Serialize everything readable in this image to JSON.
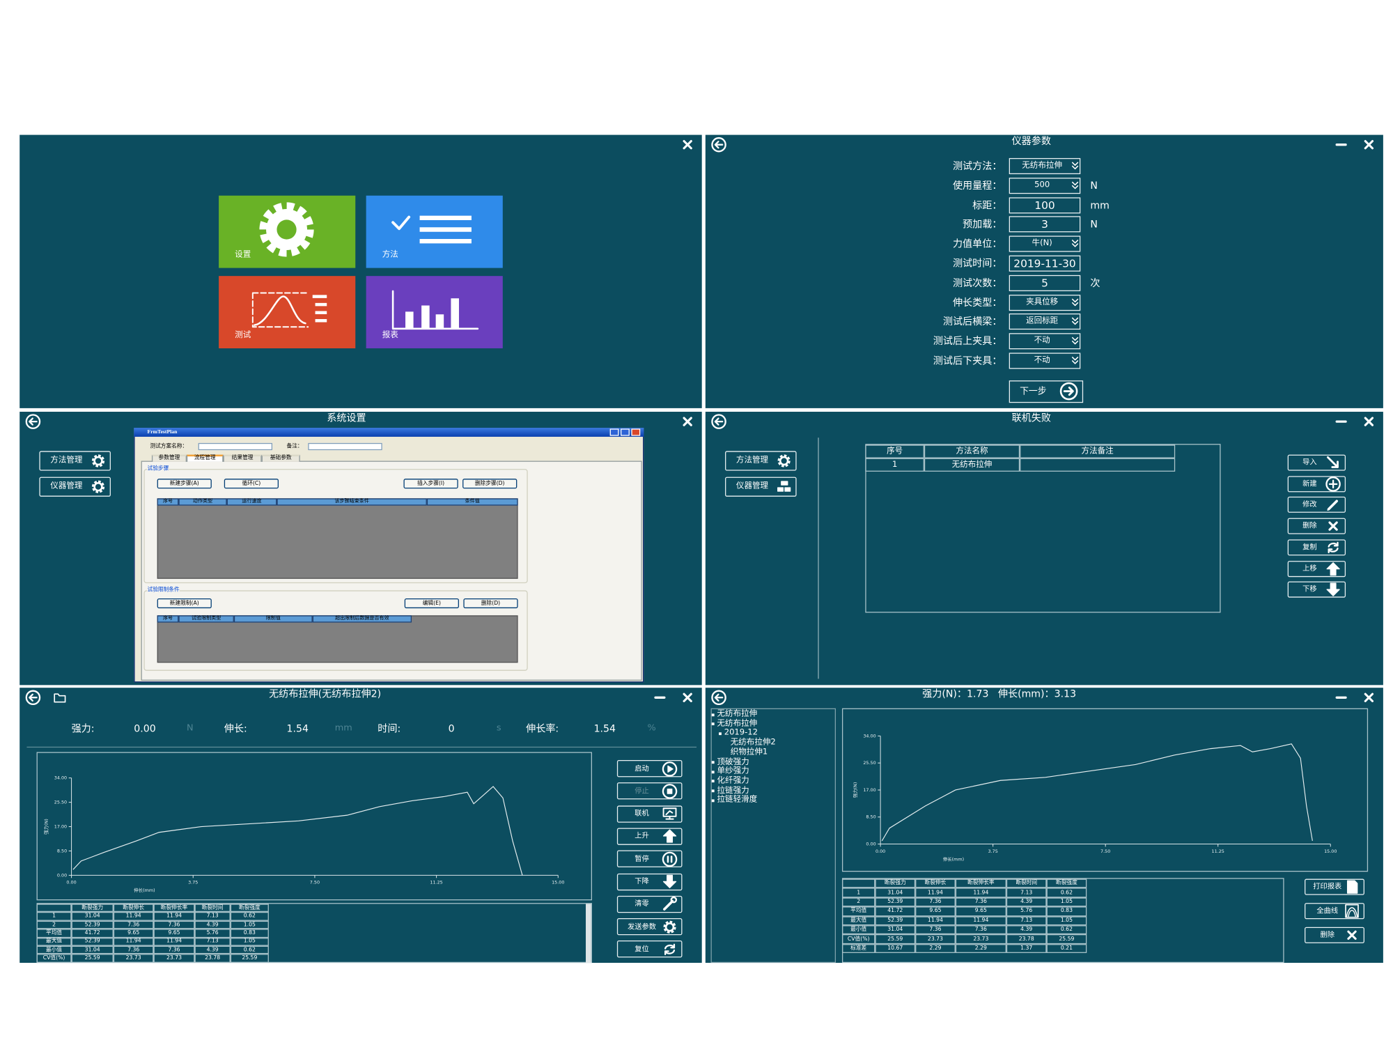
{
  "home": {
    "tiles": [
      "设置",
      "方法",
      "测试",
      "报表"
    ]
  },
  "instrument": {
    "title": "仪器参数",
    "fields": [
      {
        "label": "测试方法：",
        "value": "无纺布拉伸",
        "dropdown": true
      },
      {
        "label": "使用量程：",
        "value": "500",
        "unit": "N",
        "dropdown": true
      },
      {
        "label": "标距：",
        "value": "100",
        "unit": "mm"
      },
      {
        "label": "预加载：",
        "value": "3",
        "unit": "N"
      },
      {
        "label": "力值单位：",
        "value": "牛(N)",
        "dropdown": true
      },
      {
        "label": "测试时间：",
        "value": "2019-11-30"
      },
      {
        "label": "测试次数：",
        "value": "5",
        "unit": "次"
      },
      {
        "label": "伸长类型：",
        "value": "夹具位移",
        "dropdown": true
      },
      {
        "label": "测试后横梁：",
        "value": "返回标距",
        "dropdown": true
      },
      {
        "label": "测试后上夹具：",
        "value": "不动",
        "dropdown": true
      },
      {
        "label": "测试后下夹具：",
        "value": "不动",
        "dropdown": true
      }
    ],
    "next": "下一步"
  },
  "settings": {
    "title": "系统设置",
    "sidebar": [
      "方法管理",
      "仪器管理"
    ],
    "window": {
      "title": "FrmTestPlan",
      "name_label": "测试方案名称：",
      "remark_label": "备注：",
      "tabs": [
        "参数管理",
        "流程管理",
        "结果管理",
        "基础参数"
      ],
      "steps": {
        "title": "试验步骤",
        "buttons": [
          "新建步骤(A)",
          "循环(C)",
          "插入步骤(I)",
          "删除步骤(D)"
        ],
        "columns": [
          "序号",
          "动作类型",
          "运行速度",
          "该步骤结束条件",
          "条件值"
        ]
      },
      "limits": {
        "title": "试验限制条件",
        "buttons": [
          "新建限制(A)",
          "编辑(E)",
          "删除(D)"
        ],
        "columns": [
          "序号",
          "试验限制类型",
          "限制值",
          "超出限制后数据是否有效"
        ]
      }
    }
  },
  "methods": {
    "title": "联机失败",
    "sidebar": [
      "方法管理",
      "仪器管理"
    ],
    "columns": [
      "序号",
      "方法名称",
      "方法备注"
    ],
    "rows": [
      [
        "1",
        "无纺布拉伸"
      ]
    ],
    "buttons": [
      "导入",
      "新建",
      "修改",
      "删除",
      "复制",
      "上移",
      "下移"
    ]
  },
  "test": {
    "title": "无纺布拉伸(无纺布拉伸2)",
    "readouts": [
      {
        "label": "强力:",
        "value": "0.00",
        "unit": "N"
      },
      {
        "label": "伸长:",
        "value": "1.54",
        "unit": "mm"
      },
      {
        "label": "时间:",
        "value": "0",
        "unit": "s"
      },
      {
        "label": "伸长率:",
        "value": "1.54",
        "unit": "%"
      }
    ],
    "chart": {
      "xlabel": "伸长(mm)",
      "ylabel": "强力(N)",
      "xlim": [
        0,
        15
      ],
      "ylim": [
        0,
        34
      ],
      "xticks": [
        {
          "value": 0,
          "label": "0.00"
        },
        {
          "value": 3.75,
          "label": "3.75"
        },
        {
          "value": 7.5,
          "label": "7.50"
        },
        {
          "value": 11.25,
          "label": "11.25"
        },
        {
          "value": 15,
          "label": "15.00"
        }
      ],
      "yticks": [
        {
          "value": 0,
          "label": "0.00"
        },
        {
          "value": 8.5,
          "label": "8.50"
        },
        {
          "value": 17,
          "label": "17.00"
        },
        {
          "value": 25.5,
          "label": "25.50"
        },
        {
          "value": 34,
          "label": "34.00"
        }
      ],
      "x": [
        0.05,
        0.3,
        1.0,
        2.0,
        2.7,
        4.0,
        5.5,
        7.0,
        8.5,
        9.5,
        10.5,
        11.5,
        12.2,
        12.4,
        13.0,
        13.3,
        13.6,
        13.9
      ],
      "y": [
        2,
        5,
        8,
        12,
        15,
        17,
        18,
        19,
        21,
        24,
        26,
        27.5,
        29,
        25,
        31,
        27,
        12,
        0
      ]
    },
    "buttons": [
      "启动",
      "停止",
      "联机",
      "上升",
      "暂停",
      "下降",
      "清零",
      "发送参数",
      "复位"
    ],
    "table": {
      "columns": [
        "断裂强力",
        "断裂伸长",
        "断裂伸长率",
        "断裂时间",
        "断裂强度"
      ],
      "rows": [
        [
          "1",
          "31.04",
          "11.94",
          "11.94",
          "7.13",
          "0.62"
        ],
        [
          "2",
          "52.39",
          "7.36",
          "7.36",
          "4.39",
          "1.05"
        ],
        [
          "平均值",
          "41.72",
          "9.65",
          "9.65",
          "5.76",
          "0.83"
        ],
        [
          "最大值",
          "52.39",
          "11.94",
          "11.94",
          "7.13",
          "1.05"
        ],
        [
          "最小值",
          "31.04",
          "7.36",
          "7.36",
          "4.39",
          "0.62"
        ],
        [
          "CV值(%)",
          "25.59",
          "23.73",
          "23.73",
          "23.78",
          "25.59"
        ]
      ]
    }
  },
  "report": {
    "title": "强力(N)：1.73   伸长(mm)：3.13",
    "tree": [
      {
        "text": "无纺布拉伸",
        "level": 0
      },
      {
        "text": "无纺布拉伸",
        "level": 0
      },
      {
        "text": "2019-12",
        "level": 1
      },
      {
        "text": "无纺布拉伸2",
        "level": 2
      },
      {
        "text": "织物拉伸1",
        "level": 2
      },
      {
        "text": "顶破强力",
        "level": 0
      },
      {
        "text": "单纱强力",
        "level": 0
      },
      {
        "text": "化纤强力",
        "level": 0
      },
      {
        "text": "拉链强力",
        "level": 0
      },
      {
        "text": "拉链轻滑度",
        "level": 0
      }
    ],
    "chart": {
      "xlabel": "伸长(mm)",
      "ylabel": "强力(N)",
      "xlim": [
        0,
        15
      ],
      "ylim": [
        0,
        34
      ],
      "xticks": [
        {
          "value": 0,
          "label": "0.00"
        },
        {
          "value": 3.75,
          "label": "3.75"
        },
        {
          "value": 7.5,
          "label": "7.50"
        },
        {
          "value": 11.25,
          "label": "11.25"
        },
        {
          "value": 15,
          "label": "15.00"
        }
      ],
      "yticks": [
        {
          "value": 0,
          "label": "0.00"
        },
        {
          "value": 8.5,
          "label": "8.50"
        },
        {
          "value": 17,
          "label": "17.00"
        },
        {
          "value": 25.5,
          "label": "25.50"
        },
        {
          "value": 34,
          "label": "34.00"
        }
      ],
      "x": [
        0.05,
        0.3,
        1.5,
        2.5,
        4.0,
        5.5,
        7.0,
        8.5,
        9.8,
        11.0,
        12.0,
        12.4,
        13.0,
        13.7,
        14.0,
        14.2,
        14.4
      ],
      "y": [
        1,
        5,
        12,
        17,
        20,
        21,
        23,
        25,
        28,
        30,
        31,
        29,
        30,
        31.5,
        27,
        12,
        1
      ]
    },
    "table": {
      "columns": [
        "断裂强力",
        "断裂伸长",
        "断裂伸长率",
        "断裂时间",
        "断裂强度"
      ],
      "rows": [
        [
          "1",
          "31.04",
          "11.94",
          "11.94",
          "7.13",
          "0.62"
        ],
        [
          "2",
          "52.39",
          "7.36",
          "7.36",
          "4.39",
          "1.05"
        ],
        [
          "平均值",
          "41.72",
          "9.65",
          "9.65",
          "5.76",
          "0.83"
        ],
        [
          "最大值",
          "52.39",
          "11.94",
          "11.94",
          "7.13",
          "1.05"
        ],
        [
          "最小值",
          "31.04",
          "7.36",
          "7.36",
          "4.39",
          "0.62"
        ],
        [
          "CV值(%)",
          "25.59",
          "23.73",
          "23.73",
          "23.78",
          "25.59"
        ],
        [
          "标准差",
          "10.67",
          "2.29",
          "2.29",
          "1.37",
          "0.21"
        ]
      ]
    },
    "buttons": [
      "打印报表",
      "全曲线",
      "删除"
    ]
  }
}
